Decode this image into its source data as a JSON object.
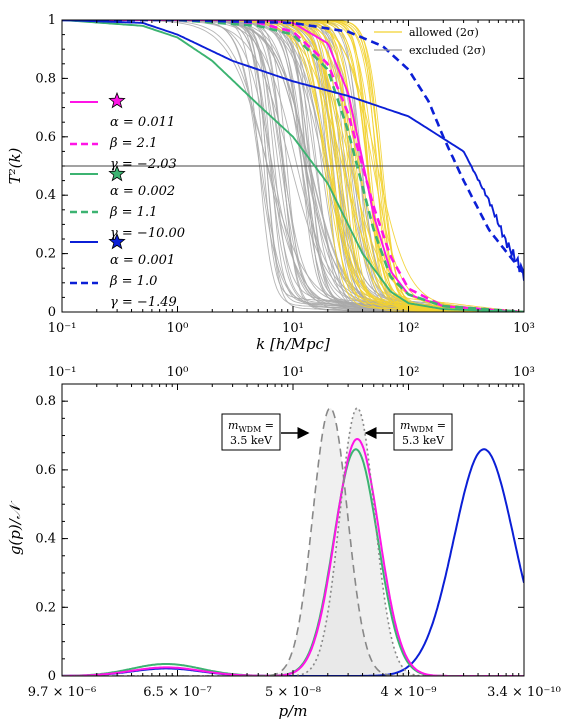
{
  "colors": {
    "magenta": "#ff14e6",
    "green": "#3cb371",
    "blue": "#0b1fd6",
    "allowed": "#f2d230",
    "excluded": "#a8a8a8",
    "fill": "#e4e4e4"
  },
  "chart_data": [
    {
      "type": "line",
      "xscale": "log",
      "xlim": [
        0.1,
        1000
      ],
      "ylim": [
        0,
        1
      ],
      "xlabel": "k [h/Mpc]",
      "ylabel": "T²(k)",
      "x_tick_labels": [
        "10⁻¹",
        "10⁰",
        "10¹",
        "10²",
        "10³"
      ],
      "y_tick_labels": [
        "0",
        "0.2",
        "0.4",
        "0.6",
        "0.8",
        "1"
      ],
      "hline": 0.5,
      "legend": {
        "position": "top-right",
        "entries": [
          "allowed (2σ)",
          "excluded (2σ)"
        ]
      },
      "bands": {
        "allowed": {
          "count": 40,
          "k_half_range": [
            18,
            60
          ]
        },
        "excluded": {
          "count": 60,
          "k_half_range": [
            5,
            40
          ]
        }
      },
      "series": [
        {
          "color": "magenta",
          "style": "solid",
          "x": [
            0.1,
            1,
            5,
            10,
            20,
            30,
            40,
            50,
            70,
            100,
            200,
            1000
          ],
          "y": [
            1,
            1,
            1,
            0.99,
            0.92,
            0.75,
            0.52,
            0.33,
            0.14,
            0.06,
            0.02,
            0
          ]
        },
        {
          "color": "magenta",
          "style": "dashed",
          "x": [
            0.1,
            1,
            5,
            10,
            20,
            30,
            40,
            50,
            70,
            100,
            200,
            1000
          ],
          "y": [
            1,
            1,
            0.99,
            0.96,
            0.85,
            0.68,
            0.5,
            0.36,
            0.19,
            0.08,
            0.02,
            0
          ]
        },
        {
          "color": "green",
          "style": "solid",
          "x": [
            0.1,
            0.5,
            1,
            2,
            5,
            10,
            20,
            40,
            70,
            100,
            200,
            1000
          ],
          "y": [
            1,
            0.98,
            0.94,
            0.86,
            0.71,
            0.6,
            0.44,
            0.2,
            0.07,
            0.03,
            0.01,
            0
          ]
        },
        {
          "color": "green",
          "style": "dashed",
          "x": [
            0.1,
            1,
            5,
            10,
            20,
            30,
            40,
            50,
            70,
            100,
            200,
            1000
          ],
          "y": [
            1,
            1,
            0.98,
            0.95,
            0.83,
            0.62,
            0.43,
            0.28,
            0.12,
            0.06,
            0.02,
            0
          ]
        },
        {
          "color": "blue",
          "style": "solid",
          "x": [
            0.1,
            0.5,
            1,
            3,
            10,
            30,
            100,
            300,
            500,
            700,
            1000
          ],
          "y": [
            1,
            0.99,
            0.95,
            0.86,
            0.79,
            0.74,
            0.67,
            0.55,
            0.38,
            0.24,
            0.13
          ]
        },
        {
          "color": "blue",
          "style": "dashed",
          "x": [
            0.1,
            1,
            10,
            30,
            60,
            100,
            150,
            200,
            300,
            500,
            1000
          ],
          "y": [
            1,
            1,
            0.99,
            0.96,
            0.91,
            0.83,
            0.72,
            0.6,
            0.45,
            0.28,
            0.13
          ]
        }
      ],
      "parameter_boxes": [
        {
          "color": "magenta",
          "alpha": "α = 0.011",
          "beta": "β = 2.1",
          "gamma": "γ = −2.03"
        },
        {
          "color": "green",
          "alpha": "α = 0.002",
          "beta": "β = 1.1",
          "gamma": "γ = −10.00"
        },
        {
          "color": "blue",
          "alpha": "α = 0.001",
          "beta": "β = 1.0",
          "gamma": "γ = −1.49"
        }
      ]
    },
    {
      "type": "line",
      "xscale": "log",
      "xlim": [
        0.1,
        1000
      ],
      "ylim": [
        0,
        0.85
      ],
      "xlabel": "p/m",
      "ylabel": "g(p)/𝒩",
      "top_tick_labels": [
        "10⁻¹",
        "10⁰",
        "10¹",
        "10²",
        "10³"
      ],
      "bottom_tick_labels": [
        "9.7 × 10⁻⁶",
        "6.5 × 10⁻⁷",
        "5 × 10⁻⁸",
        "4 × 10⁻⁹",
        "3.4 × 10⁻¹⁰"
      ],
      "y_tick_labels": [
        "0",
        "0.2",
        "0.4",
        "0.6",
        "0.8"
      ],
      "annotations": [
        {
          "line1": "m",
          "sub": "WDM",
          "line1_tail": " =",
          "line2": "3.5 keV"
        },
        {
          "line1": "m",
          "sub": "WDM",
          "line1_tail": " =",
          "line2": "5.3 keV"
        }
      ],
      "series": [
        {
          "color": "blue",
          "style": "solid",
          "peaks": [
            {
              "k": 0.8,
              "amp": 0.022,
              "w": 0.3
            },
            {
              "k": 450,
              "amp": 0.66,
              "w": 0.26
            }
          ]
        },
        {
          "color": "green",
          "style": "solid",
          "peaks": [
            {
              "k": 0.8,
              "amp": 0.035,
              "w": 0.3
            },
            {
              "k": 35,
              "amp": 0.66,
              "w": 0.19
            }
          ]
        },
        {
          "color": "magenta",
          "style": "solid",
          "peaks": [
            {
              "k": 0.8,
              "amp": 0.025,
              "w": 0.3
            },
            {
              "k": 36,
              "amp": 0.69,
              "w": 0.19
            }
          ]
        },
        {
          "color": "#888888",
          "style": "dashed",
          "peaks": [
            {
              "k": 21,
              "amp": 0.78,
              "w": 0.15
            }
          ]
        },
        {
          "color": "#888888",
          "style": "dotted",
          "peaks": [
            {
              "k": 36,
              "amp": 0.78,
              "w": 0.15
            }
          ]
        }
      ]
    }
  ]
}
